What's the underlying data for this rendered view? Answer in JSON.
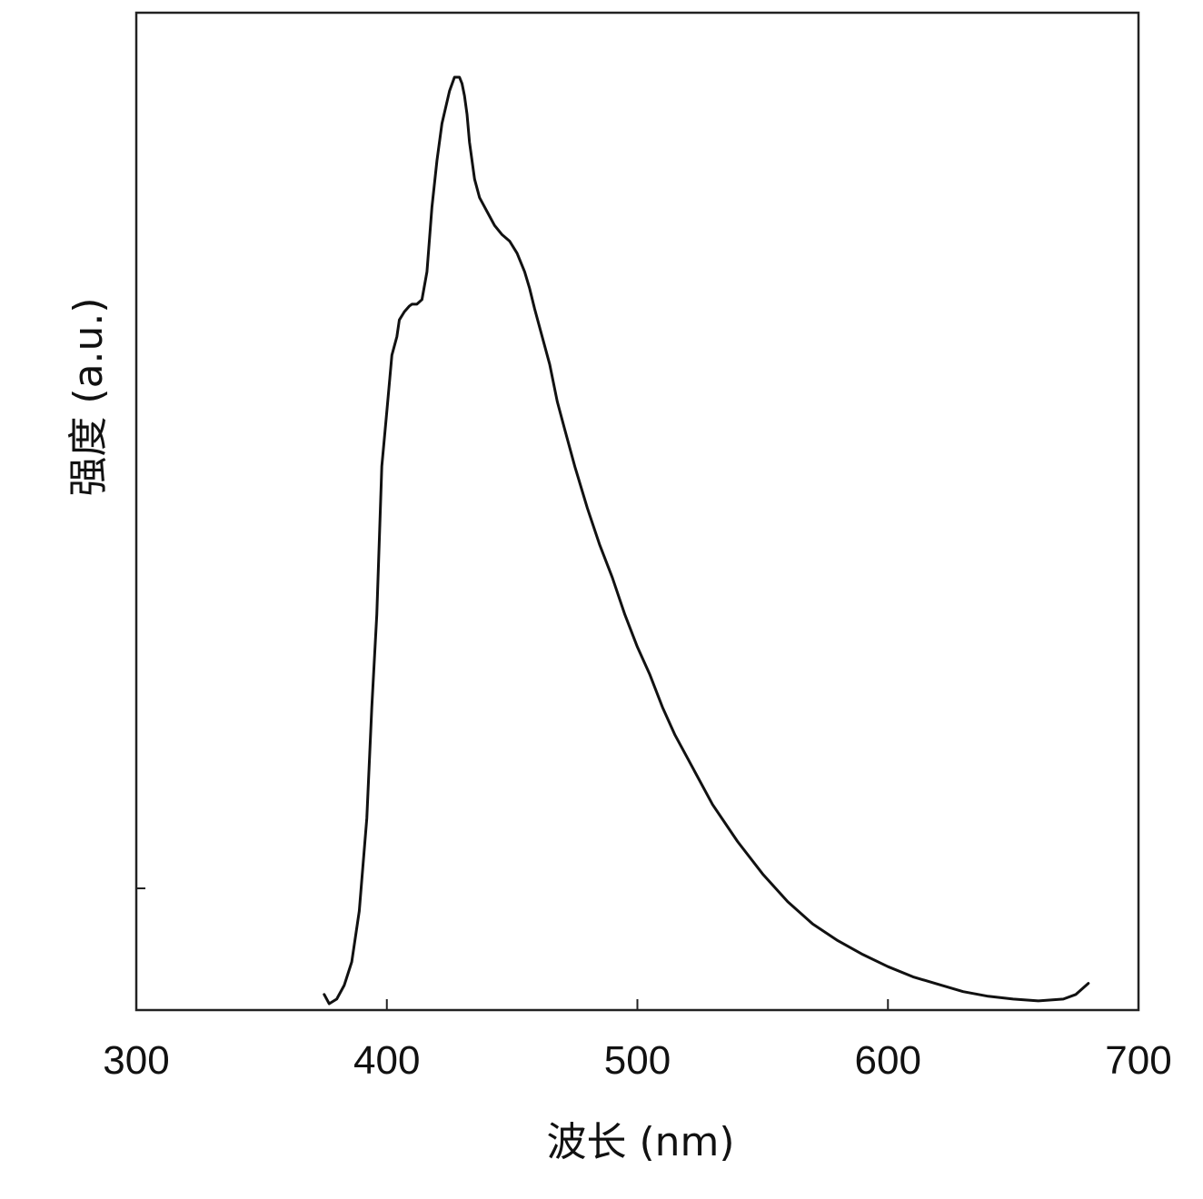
{
  "chart_data": {
    "type": "line",
    "title": "",
    "xlabel": "波长 (nm)",
    "ylabel": "强度 (a.u.)",
    "xlim": [
      300,
      700
    ],
    "x_ticks": [
      300,
      400,
      500,
      600,
      700
    ],
    "x_tick_labels": [
      "300",
      "400",
      "500",
      "600",
      "700"
    ],
    "y_tick_labels": [],
    "grid": false,
    "legend": "none",
    "colors": {
      "line": "#111111",
      "axis": "#222222"
    },
    "series": [
      {
        "x": [
          375,
          377,
          380,
          383,
          386,
          389,
          392,
          394,
          396,
          398,
          400,
          402,
          404,
          405,
          407,
          409,
          410,
          412,
          414,
          416,
          418,
          420,
          422,
          425,
          427,
          429,
          430,
          431,
          432,
          433,
          435,
          437,
          439,
          441,
          443,
          446,
          449,
          452,
          455,
          457,
          459,
          462,
          465,
          468,
          471,
          475,
          480,
          485,
          490,
          495,
          500,
          505,
          510,
          515,
          520,
          530,
          540,
          550,
          560,
          570,
          580,
          590,
          600,
          610,
          620,
          630,
          640,
          650,
          660,
          670,
          675,
          680
        ],
        "y": [
          1.0,
          0.0,
          0.5,
          2.0,
          4.5,
          10,
          20,
          32,
          42,
          58,
          64,
          70,
          72,
          73.8,
          74.7,
          75.3,
          75.5,
          75.5,
          76,
          79,
          86,
          91,
          95,
          98.5,
          100,
          100,
          99.3,
          98,
          96,
          93,
          89,
          87,
          86,
          85,
          84,
          83,
          82.3,
          81,
          79,
          77.2,
          75,
          72,
          69,
          65,
          62,
          58,
          53.5,
          49.5,
          46,
          42,
          38.5,
          35.5,
          32,
          29,
          26.5,
          21.5,
          17.5,
          14,
          11,
          8.6,
          6.8,
          5.3,
          4.0,
          2.9,
          2.1,
          1.3,
          0.8,
          0.5,
          0.3,
          0.5,
          1.0,
          2.2
        ]
      }
    ]
  }
}
